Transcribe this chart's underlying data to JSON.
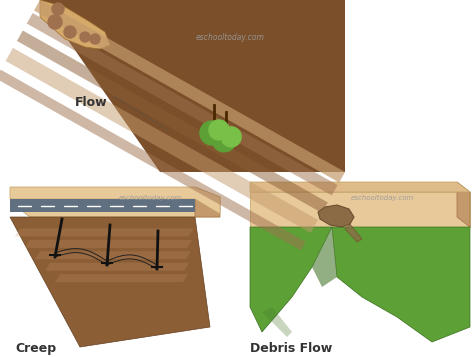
{
  "bg_color": "#ffffff",
  "creep_label": "Creep",
  "debris_label": "Debris Flow",
  "flow_label": "Flow",
  "watermark": "eschooltoday.com",
  "colors": {
    "soil_dark": "#7A4F2A",
    "soil_dark2": "#8B5E35",
    "soil_mid": "#A0714F",
    "soil_light": "#C49A6C",
    "soil_sandy": "#D4A96A",
    "soil_base": "#E8C99A",
    "soil_base2": "#DEBB88",
    "road_gray": "#607080",
    "road_gray2": "#708595",
    "green_dark": "#4A7A30",
    "green_mid": "#5DA035",
    "green_light": "#78C048",
    "debris_brown": "#8B6B45",
    "debris_dark": "#6B4F30",
    "label_color": "#333333",
    "watermark_color": "#999999",
    "pole_color": "#111111",
    "wire_color": "#222222"
  }
}
